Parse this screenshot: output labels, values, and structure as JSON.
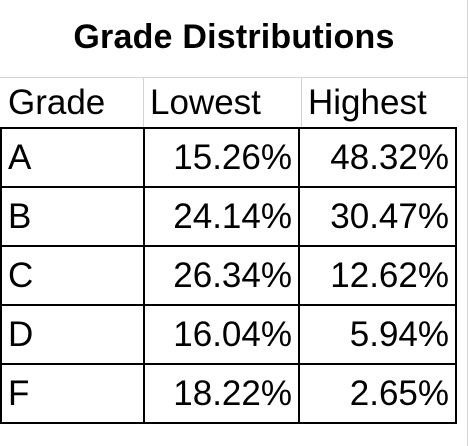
{
  "sheet": {
    "title": "Grade Distributions",
    "headers": [
      "Grade",
      "Lowest",
      "Highest"
    ],
    "rows": [
      {
        "grade": "A",
        "lowest": "15.26%",
        "highest": "48.32%"
      },
      {
        "grade": "B",
        "lowest": "24.14%",
        "highest": "30.47%"
      },
      {
        "grade": "C",
        "lowest": "26.34%",
        "highest": "12.62%"
      },
      {
        "grade": "D",
        "lowest": "16.04%",
        "highest": "5.94%"
      },
      {
        "grade": "F",
        "lowest": "18.22%",
        "highest": "2.65%"
      }
    ]
  }
}
